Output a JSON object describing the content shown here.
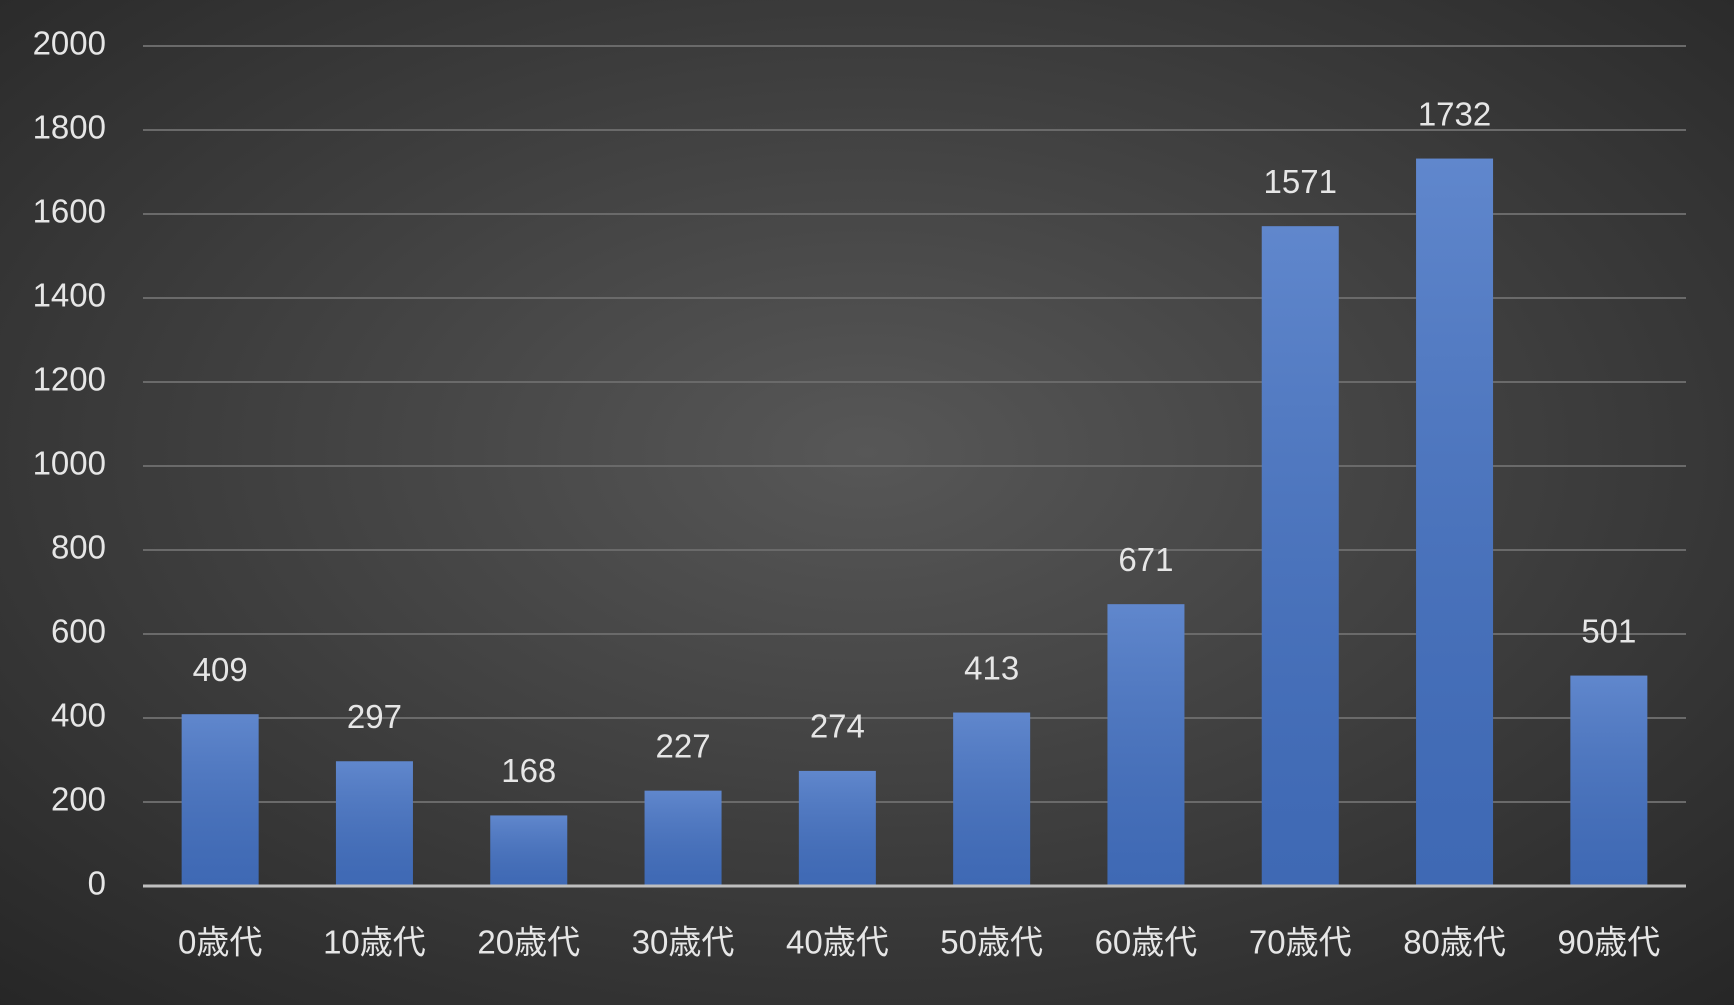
{
  "chart_data": {
    "type": "bar",
    "categories": [
      "0歳代",
      "10歳代",
      "20歳代",
      "30歳代",
      "40歳代",
      "50歳代",
      "60歳代",
      "70歳代",
      "80歳代",
      "90歳代"
    ],
    "values": [
      409,
      297,
      168,
      227,
      274,
      413,
      671,
      1571,
      1732,
      501
    ],
    "color": "#4472c4",
    "ylim": [
      0,
      2000
    ],
    "yticks": [
      0,
      200,
      400,
      600,
      800,
      1000,
      1200,
      1400,
      1600,
      1800,
      2000
    ],
    "grid": true
  }
}
